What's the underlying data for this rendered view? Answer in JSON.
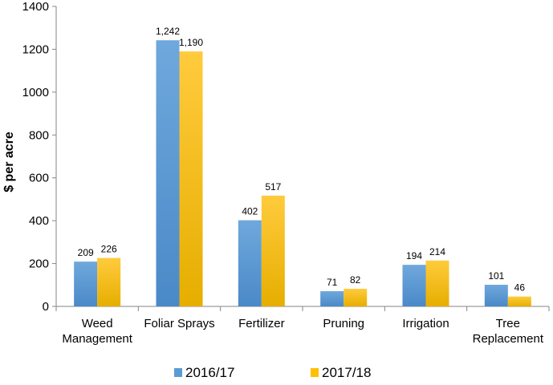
{
  "chart_data": {
    "type": "bar",
    "categories": [
      [
        "Weed",
        "Management"
      ],
      [
        "Foliar Sprays"
      ],
      [
        "Fertilizer"
      ],
      [
        "Pruning"
      ],
      [
        "Irrigation"
      ],
      [
        "Tree",
        "Replacement"
      ]
    ],
    "series": [
      {
        "name": "2016/17",
        "values": [
          209,
          1242,
          402,
          71,
          194,
          101
        ],
        "labels": [
          "209",
          "1,242",
          "402",
          "71",
          "194",
          "101"
        ],
        "color": "#5B9BD5"
      },
      {
        "name": "2017/18",
        "values": [
          226,
          1190,
          517,
          82,
          214,
          46
        ],
        "labels": [
          "226",
          "1,190",
          "517",
          "82",
          "214",
          "46"
        ],
        "color": "#FFC000"
      }
    ],
    "ylabel": "$ per acre",
    "xlabel": "",
    "ylim": [
      0,
      1400
    ],
    "yticks": [
      0,
      200,
      400,
      600,
      800,
      1000,
      1200,
      1400
    ],
    "grid": false,
    "legend": "bottom"
  }
}
